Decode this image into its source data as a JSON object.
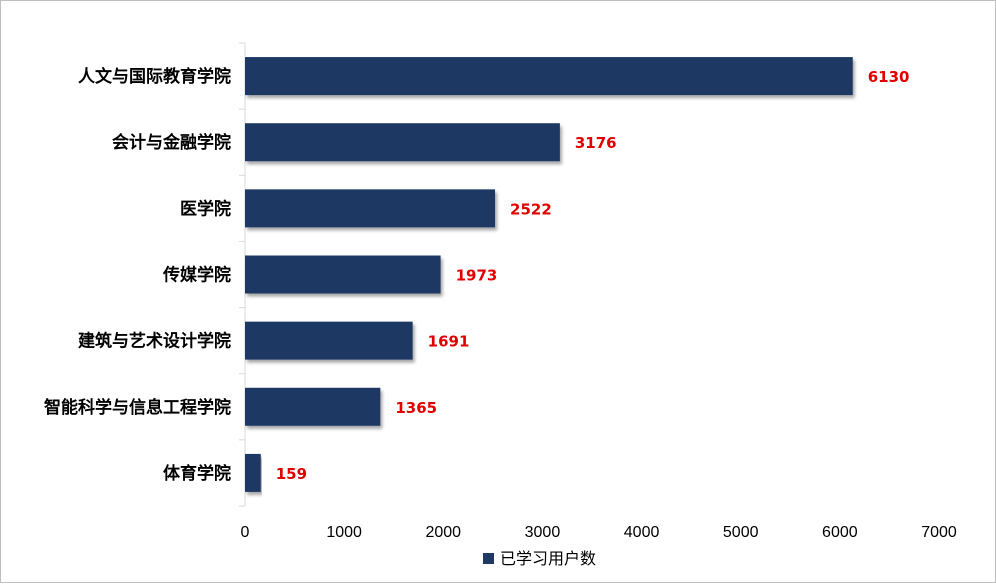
{
  "chart_data": {
    "type": "bar",
    "orientation": "horizontal",
    "categories": [
      "人文与国际教育学院",
      "会计与金融学院",
      "医学院",
      "传媒学院",
      "建筑与艺术设计学院",
      "智能科学与信息工程学院",
      "体育学院"
    ],
    "series": [
      {
        "name": "已学习用户数",
        "values": [
          6130,
          3176,
          2522,
          1973,
          1691,
          1365,
          159
        ],
        "color": "#1f3864"
      }
    ],
    "xlim": [
      0,
      7000
    ],
    "xticks": [
      0,
      1000,
      2000,
      3000,
      4000,
      5000,
      6000,
      7000
    ],
    "data_label_color": "#e00000",
    "grid": false,
    "legend_position": "bottom"
  }
}
